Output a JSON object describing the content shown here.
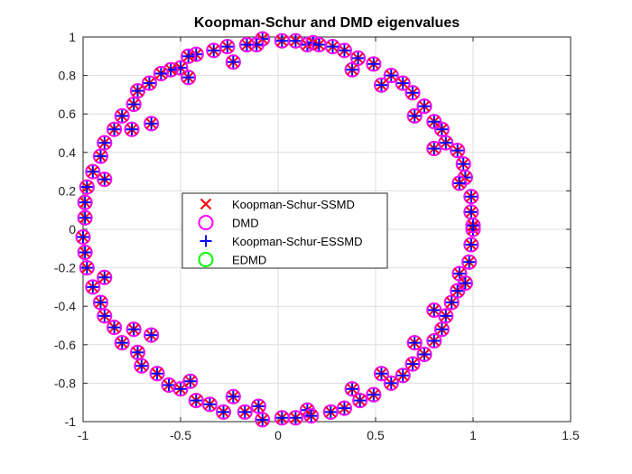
{
  "chart_data": {
    "type": "scatter",
    "title": "Koopman-Schur and DMD eigenvalues",
    "xlabel": "",
    "ylabel": "",
    "xlim": [
      -1,
      1.5
    ],
    "ylim": [
      -1,
      1
    ],
    "grid": true,
    "xticks": [
      -1,
      -0.5,
      0,
      0.5,
      1,
      1.5
    ],
    "yticks": [
      -1,
      -0.8,
      -0.6,
      -0.4,
      -0.2,
      0,
      0.2,
      0.4,
      0.6,
      0.8,
      1
    ],
    "xtick_labels": [
      "-1",
      "-0.5",
      "0",
      "0.5",
      "1",
      "1.5"
    ],
    "ytick_labels": [
      "-1",
      "-0.8",
      "-0.6",
      "-0.4",
      "-0.2",
      "0",
      "0.2",
      "0.4",
      "0.6",
      "0.8",
      "1"
    ],
    "legend_position": "center-left",
    "series": [
      {
        "name": "Koopman-Schur-SSMD",
        "marker": "x",
        "color": "#ff0000"
      },
      {
        "name": "DMD",
        "marker": "circle",
        "color": "#ff00ff"
      },
      {
        "name": "Koopman-Schur-ESSMD",
        "marker": "plus",
        "color": "#0000ff"
      },
      {
        "name": "EDMD",
        "marker": "circle",
        "color": "#00ff00"
      }
    ],
    "points_note": "All four series share the same eigenvalue locations; listed below as [x, y].",
    "points": [
      [
        -0.08,
        0.99
      ],
      [
        0.02,
        0.98
      ],
      [
        0.09,
        0.98
      ],
      [
        0.15,
        0.96
      ],
      [
        0.18,
        0.97
      ],
      [
        -0.11,
        0.96
      ],
      [
        -0.16,
        0.96
      ],
      [
        -0.26,
        0.95
      ],
      [
        -0.33,
        0.93
      ],
      [
        -0.42,
        0.91
      ],
      [
        -0.46,
        0.9
      ],
      [
        -0.5,
        0.84
      ],
      [
        -0.55,
        0.83
      ],
      [
        -0.6,
        0.81
      ],
      [
        -0.23,
        0.87
      ],
      [
        -0.46,
        0.79
      ],
      [
        -0.66,
        0.76
      ],
      [
        -0.72,
        0.72
      ],
      [
        -0.74,
        0.65
      ],
      [
        -0.8,
        0.59
      ],
      [
        -0.84,
        0.52
      ],
      [
        -0.75,
        0.52
      ],
      [
        -0.65,
        0.55
      ],
      [
        -0.89,
        0.45
      ],
      [
        -0.91,
        0.38
      ],
      [
        -0.95,
        0.3
      ],
      [
        -0.89,
        0.26
      ],
      [
        -0.98,
        0.22
      ],
      [
        -0.99,
        0.14
      ],
      [
        -0.99,
        0.06
      ],
      [
        -1.0,
        -0.04
      ],
      [
        -0.99,
        -0.12
      ],
      [
        -0.98,
        -0.2
      ],
      [
        -0.95,
        -0.3
      ],
      [
        -0.89,
        -0.25
      ],
      [
        -0.91,
        -0.38
      ],
      [
        -0.89,
        -0.45
      ],
      [
        -0.84,
        -0.51
      ],
      [
        -0.8,
        -0.59
      ],
      [
        -0.74,
        -0.52
      ],
      [
        -0.65,
        -0.55
      ],
      [
        -0.72,
        -0.64
      ],
      [
        -0.7,
        -0.71
      ],
      [
        -0.62,
        -0.75
      ],
      [
        -0.56,
        -0.81
      ],
      [
        -0.5,
        -0.83
      ],
      [
        -0.45,
        -0.79
      ],
      [
        -0.42,
        -0.89
      ],
      [
        -0.35,
        -0.91
      ],
      [
        -0.28,
        -0.95
      ],
      [
        -0.23,
        -0.87
      ],
      [
        -0.17,
        -0.95
      ],
      [
        -0.1,
        -0.92
      ],
      [
        -0.08,
        -0.99
      ],
      [
        0.02,
        -0.98
      ],
      [
        0.09,
        -0.98
      ],
      [
        0.15,
        -0.94
      ],
      [
        0.17,
        -0.97
      ],
      [
        0.27,
        -0.95
      ],
      [
        0.34,
        -0.93
      ],
      [
        0.38,
        -0.83
      ],
      [
        0.42,
        -0.89
      ],
      [
        0.49,
        -0.86
      ],
      [
        0.53,
        -0.75
      ],
      [
        0.58,
        -0.8
      ],
      [
        0.64,
        -0.76
      ],
      [
        0.69,
        -0.7
      ],
      [
        0.7,
        -0.59
      ],
      [
        0.75,
        -0.65
      ],
      [
        0.8,
        -0.58
      ],
      [
        0.84,
        -0.52
      ],
      [
        0.8,
        -0.42
      ],
      [
        0.86,
        -0.45
      ],
      [
        0.89,
        -0.38
      ],
      [
        0.92,
        -0.32
      ],
      [
        0.93,
        -0.23
      ],
      [
        0.96,
        -0.28
      ],
      [
        0.98,
        -0.17
      ],
      [
        0.99,
        -0.08
      ],
      [
        1.0,
        0.0
      ],
      [
        1.0,
        0.02
      ],
      [
        0.99,
        0.09
      ],
      [
        0.99,
        0.17
      ],
      [
        0.96,
        0.27
      ],
      [
        0.93,
        0.24
      ],
      [
        0.95,
        0.34
      ],
      [
        0.92,
        0.41
      ],
      [
        0.86,
        0.45
      ],
      [
        0.8,
        0.42
      ],
      [
        0.84,
        0.52
      ],
      [
        0.8,
        0.56
      ],
      [
        0.75,
        0.64
      ],
      [
        0.7,
        0.59
      ],
      [
        0.69,
        0.71
      ],
      [
        0.64,
        0.76
      ],
      [
        0.58,
        0.8
      ],
      [
        0.53,
        0.75
      ],
      [
        0.49,
        0.86
      ],
      [
        0.41,
        0.89
      ],
      [
        0.38,
        0.83
      ],
      [
        0.34,
        0.93
      ],
      [
        0.28,
        0.95
      ],
      [
        0.21,
        0.96
      ]
    ]
  }
}
